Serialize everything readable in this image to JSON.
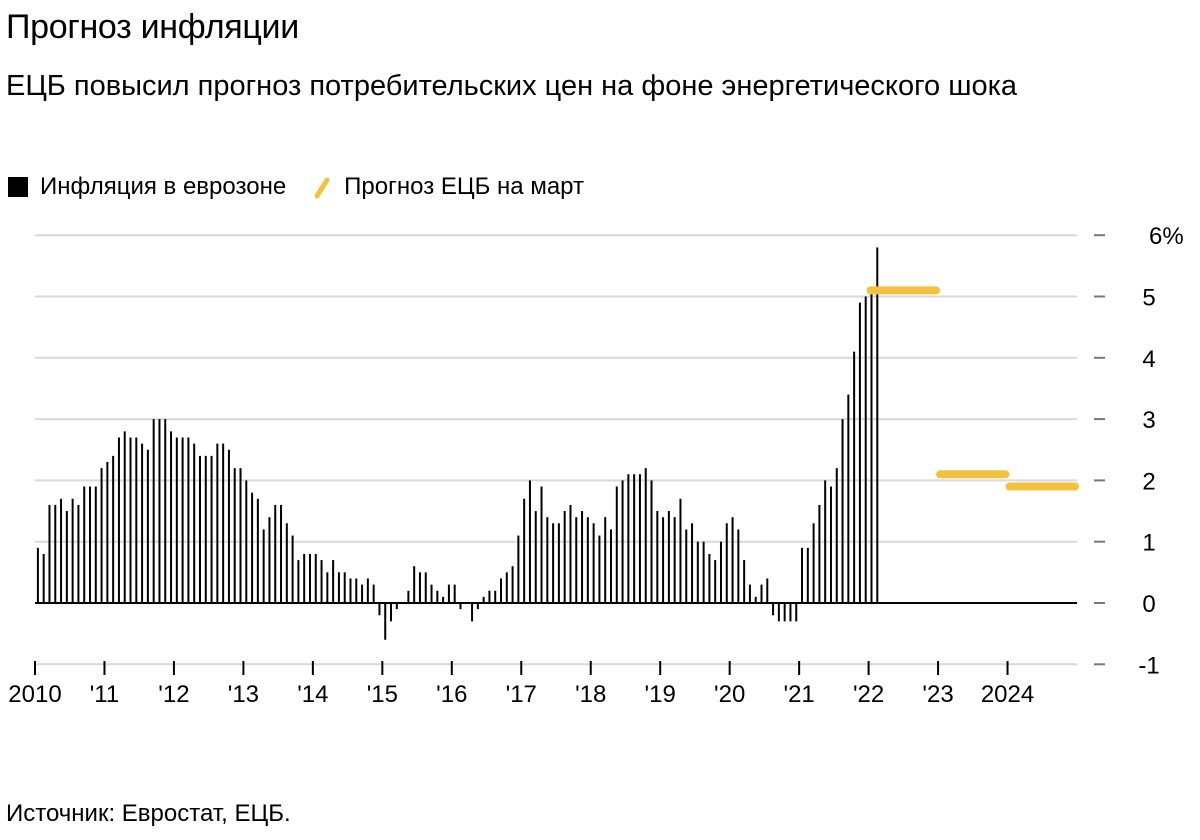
{
  "title": "Прогноз инфляции",
  "subtitle": "ЕЦБ повысил прогноз потребительских цен на фоне энергетического шока",
  "legend": {
    "actual": "Инфляция в еврозоне",
    "forecast": "Прогноз ЕЦБ на март"
  },
  "source": "Источник: Евростат, ЕЦБ.",
  "chart_data": {
    "type": "bar",
    "ylim": [
      -1,
      6
    ],
    "y_ticks": [
      {
        "value": 6,
        "label": "6%"
      },
      {
        "value": 5,
        "label": "5"
      },
      {
        "value": 4,
        "label": "4"
      },
      {
        "value": 3,
        "label": "3"
      },
      {
        "value": 2,
        "label": "2"
      },
      {
        "value": 1,
        "label": "1"
      },
      {
        "value": 0,
        "label": "0"
      },
      {
        "value": -1,
        "label": "-1"
      }
    ],
    "x_start": "2010-01",
    "x_end": "2024-12",
    "x_ticks": [
      "2010",
      "'11",
      "'12",
      "'13",
      "'14",
      "'15",
      "'16",
      "'17",
      "'18",
      "'19",
      "'20",
      "'21",
      "'22",
      "'23",
      "2024"
    ],
    "grid": true,
    "legend_position": "top-left",
    "colors": {
      "actual": "#000000",
      "forecast": "#f2c23e",
      "grid": "#d9d9d9"
    },
    "series": [
      {
        "name": "Инфляция в еврозоне",
        "type": "bar",
        "start": "2010-01",
        "values": [
          0.9,
          0.8,
          1.6,
          1.6,
          1.7,
          1.5,
          1.7,
          1.6,
          1.9,
          1.9,
          1.9,
          2.2,
          2.3,
          2.4,
          2.7,
          2.8,
          2.7,
          2.7,
          2.6,
          2.5,
          3.0,
          3.0,
          3.0,
          2.8,
          2.7,
          2.7,
          2.7,
          2.6,
          2.4,
          2.4,
          2.4,
          2.6,
          2.6,
          2.5,
          2.2,
          2.2,
          2.0,
          1.8,
          1.7,
          1.2,
          1.4,
          1.6,
          1.6,
          1.3,
          1.1,
          0.7,
          0.8,
          0.8,
          0.8,
          0.7,
          0.5,
          0.7,
          0.5,
          0.5,
          0.4,
          0.4,
          0.3,
          0.4,
          0.3,
          -0.2,
          -0.6,
          -0.3,
          -0.1,
          0.0,
          0.2,
          0.6,
          0.5,
          0.5,
          0.3,
          0.2,
          0.1,
          0.3,
          0.3,
          -0.1,
          0.0,
          -0.3,
          -0.1,
          0.1,
          0.2,
          0.2,
          0.4,
          0.5,
          0.6,
          1.1,
          1.7,
          2.0,
          1.5,
          1.9,
          1.4,
          1.3,
          1.3,
          1.5,
          1.6,
          1.4,
          1.5,
          1.4,
          1.3,
          1.1,
          1.4,
          1.2,
          1.9,
          2.0,
          2.1,
          2.1,
          2.1,
          2.2,
          2.0,
          1.5,
          1.4,
          1.5,
          1.4,
          1.7,
          1.2,
          1.3,
          1.0,
          1.0,
          0.8,
          0.7,
          1.0,
          1.3,
          1.4,
          1.2,
          0.7,
          0.3,
          0.1,
          0.3,
          0.4,
          -0.2,
          -0.3,
          -0.3,
          -0.3,
          -0.3,
          0.9,
          0.9,
          1.3,
          1.6,
          2.0,
          1.9,
          2.2,
          3.0,
          3.4,
          4.1,
          4.9,
          5.0,
          5.1,
          5.8
        ]
      },
      {
        "name": "Прогноз ЕЦБ на март",
        "type": "step",
        "points": [
          {
            "year": 2022,
            "value": 5.1
          },
          {
            "year": 2023,
            "value": 2.1
          },
          {
            "year": 2024,
            "value": 1.9
          }
        ]
      }
    ]
  }
}
